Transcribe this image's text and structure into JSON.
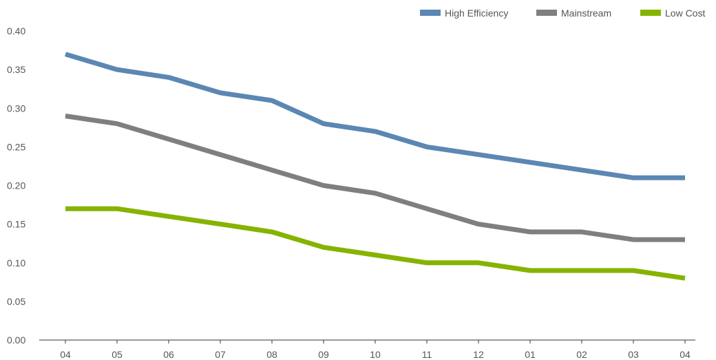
{
  "chart_data": {
    "type": "line",
    "categories": [
      "04",
      "05",
      "06",
      "07",
      "08",
      "09",
      "10",
      "11",
      "12",
      "01",
      "02",
      "03",
      "04"
    ],
    "series": [
      {
        "name": "High Efficiency",
        "color": "#5b87b3",
        "values": [
          0.37,
          0.35,
          0.34,
          0.32,
          0.31,
          0.28,
          0.27,
          0.25,
          0.24,
          0.23,
          0.22,
          0.21,
          0.21
        ]
      },
      {
        "name": "Mainstream",
        "color": "#7f7f7f",
        "values": [
          0.29,
          0.28,
          0.26,
          0.24,
          0.22,
          0.2,
          0.19,
          0.17,
          0.15,
          0.14,
          0.14,
          0.13,
          0.13
        ]
      },
      {
        "name": "Low Cost",
        "color": "#86b300",
        "values": [
          0.17,
          0.17,
          0.16,
          0.15,
          0.14,
          0.12,
          0.11,
          0.1,
          0.1,
          0.09,
          0.09,
          0.09,
          0.08
        ]
      }
    ],
    "yticks": [
      "0.00",
      "0.05",
      "0.10",
      "0.15",
      "0.20",
      "0.25",
      "0.30",
      "0.35",
      "0.40"
    ],
    "ylim": [
      0,
      0.4
    ],
    "title": "",
    "xlabel": "",
    "ylabel": "",
    "grid": false,
    "legend_position": "top-right"
  }
}
